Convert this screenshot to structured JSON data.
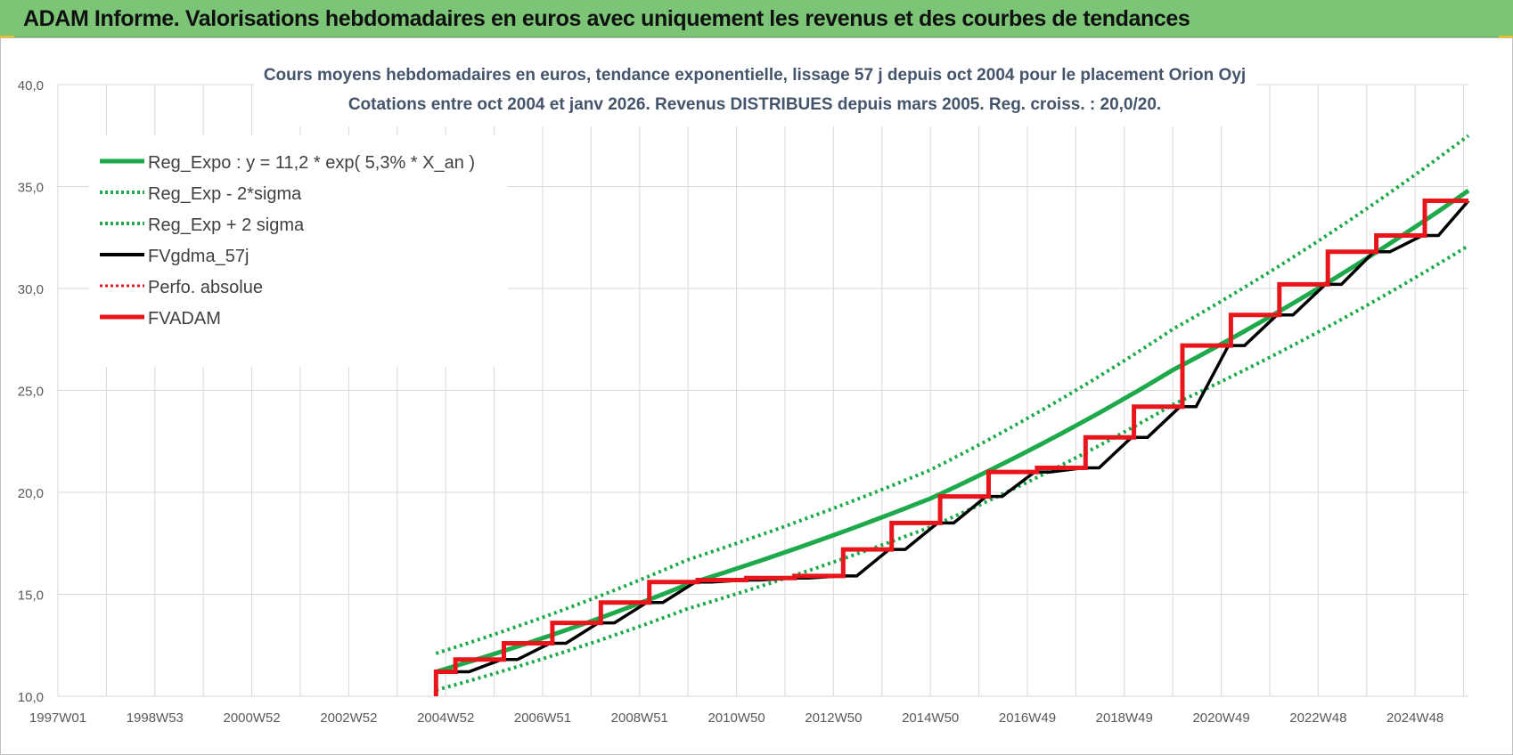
{
  "banner": {
    "title": "ADAM Informe. Valorisations hebdomadaires en euros avec uniquement les revenus et des courbes de tendances"
  },
  "colors": {
    "banner_bg": "#7cc576",
    "reg_expo": "#1eaa4b",
    "fv_gdma": "#000000",
    "fv_adam": "#e8161b",
    "perfo": "#e8161b",
    "grid": "#d9d9d9"
  },
  "chart_data": {
    "type": "line",
    "title": "Cours moyens hebdomadaires en euros, tendance exponentielle, lissage 57 j depuis oct 2004 pour le placement Orion Oyj",
    "subtitle": "Cotations entre oct 2004 et janv 2026. Revenus DISTRIBUES depuis mars 2005. Reg. croiss. : 20,0/20.",
    "xlabel": "",
    "ylabel": "",
    "ylim": [
      10,
      40
    ],
    "xlim": [
      1997.0,
      2026.1
    ],
    "yticks": [
      "10,0",
      "15,0",
      "20,0",
      "25,0",
      "30,0",
      "35,0",
      "40,0"
    ],
    "xticks": [
      {
        "label": "1997W01",
        "x": 1997.0
      },
      {
        "label": "1998W53",
        "x": 1999.0
      },
      {
        "label": "2000W52",
        "x": 2001.0
      },
      {
        "label": "2002W52",
        "x": 2003.0
      },
      {
        "label": "2004W52",
        "x": 2005.0
      },
      {
        "label": "2006W51",
        "x": 2007.0
      },
      {
        "label": "2008W51",
        "x": 2009.0
      },
      {
        "label": "2010W50",
        "x": 2011.0
      },
      {
        "label": "2012W50",
        "x": 2013.0
      },
      {
        "label": "2014W50",
        "x": 2015.0
      },
      {
        "label": "2016W49",
        "x": 2017.0
      },
      {
        "label": "2018W49",
        "x": 2019.0
      },
      {
        "label": "2020W49",
        "x": 2021.0
      },
      {
        "label": "2022W48",
        "x": 2023.0
      },
      {
        "label": "2024W48",
        "x": 2025.0
      }
    ],
    "grid": true,
    "legend_position": "top-left",
    "legend": [
      {
        "key": "reg",
        "label": "Reg_Expo : y = 11,2 * exp( 5,3% *  X_an )",
        "style": "solid-green"
      },
      {
        "key": "reg_lo",
        "label": "Reg_Exp - 2*sigma",
        "style": "dotted-green"
      },
      {
        "key": "reg_hi",
        "label": "Reg_Exp + 2 sigma",
        "style": "dotted-green"
      },
      {
        "key": "gdma",
        "label": "FVgdma_57j",
        "style": "solid-black"
      },
      {
        "key": "perfo",
        "label": "Perfo. absolue",
        "style": "dotted-red"
      },
      {
        "key": "adam",
        "label": "FVADAM",
        "style": "solid-red"
      }
    ],
    "series": [
      {
        "name": "Reg_Expo : y = 11,2 * exp( 5,3% *  X_an )",
        "x": [
          2004.8,
          2010,
          2015,
          2020,
          2026.1
        ],
        "values": [
          11.2,
          15.5,
          19.7,
          26.0,
          34.8
        ]
      },
      {
        "name": "Reg_Exp - 2*sigma",
        "x": [
          2004.8,
          2010,
          2015,
          2020,
          2026.1
        ],
        "values": [
          10.3,
          14.3,
          18.3,
          24.3,
          32.1
        ]
      },
      {
        "name": "Reg_Exp + 2 sigma",
        "x": [
          2004.8,
          2010,
          2015,
          2020,
          2026.1
        ],
        "values": [
          12.1,
          16.7,
          21.1,
          28.0,
          37.5
        ]
      },
      {
        "name": "FVADAM",
        "x": [
          2004.8,
          2004.8,
          2005.2,
          2005.2,
          2006.2,
          2006.2,
          2007.2,
          2007.2,
          2008.2,
          2008.2,
          2009.2,
          2009.2,
          2010.2,
          2010.2,
          2011.2,
          2011.2,
          2012.2,
          2012.2,
          2013.2,
          2013.2,
          2014.2,
          2014.2,
          2015.2,
          2015.2,
          2016.2,
          2016.2,
          2017.2,
          2017.2,
          2018.2,
          2018.2,
          2019.2,
          2019.2,
          2020.2,
          2020.2,
          2021.2,
          2021.2,
          2022.2,
          2022.2,
          2023.2,
          2023.2,
          2024.2,
          2024.2,
          2025.2,
          2025.2,
          2026.1
        ],
        "values": [
          10.0,
          11.2,
          11.2,
          11.8,
          11.8,
          12.6,
          12.6,
          13.6,
          13.6,
          14.6,
          14.6,
          15.6,
          15.6,
          15.7,
          15.7,
          15.8,
          15.8,
          15.9,
          15.9,
          17.2,
          17.2,
          18.5,
          18.5,
          19.8,
          19.8,
          21.0,
          21.0,
          21.2,
          21.2,
          22.7,
          22.7,
          24.2,
          24.2,
          27.2,
          27.2,
          28.7,
          28.7,
          30.2,
          30.2,
          31.8,
          31.8,
          32.6,
          32.6,
          34.3,
          34.3
        ]
      }
    ]
  }
}
